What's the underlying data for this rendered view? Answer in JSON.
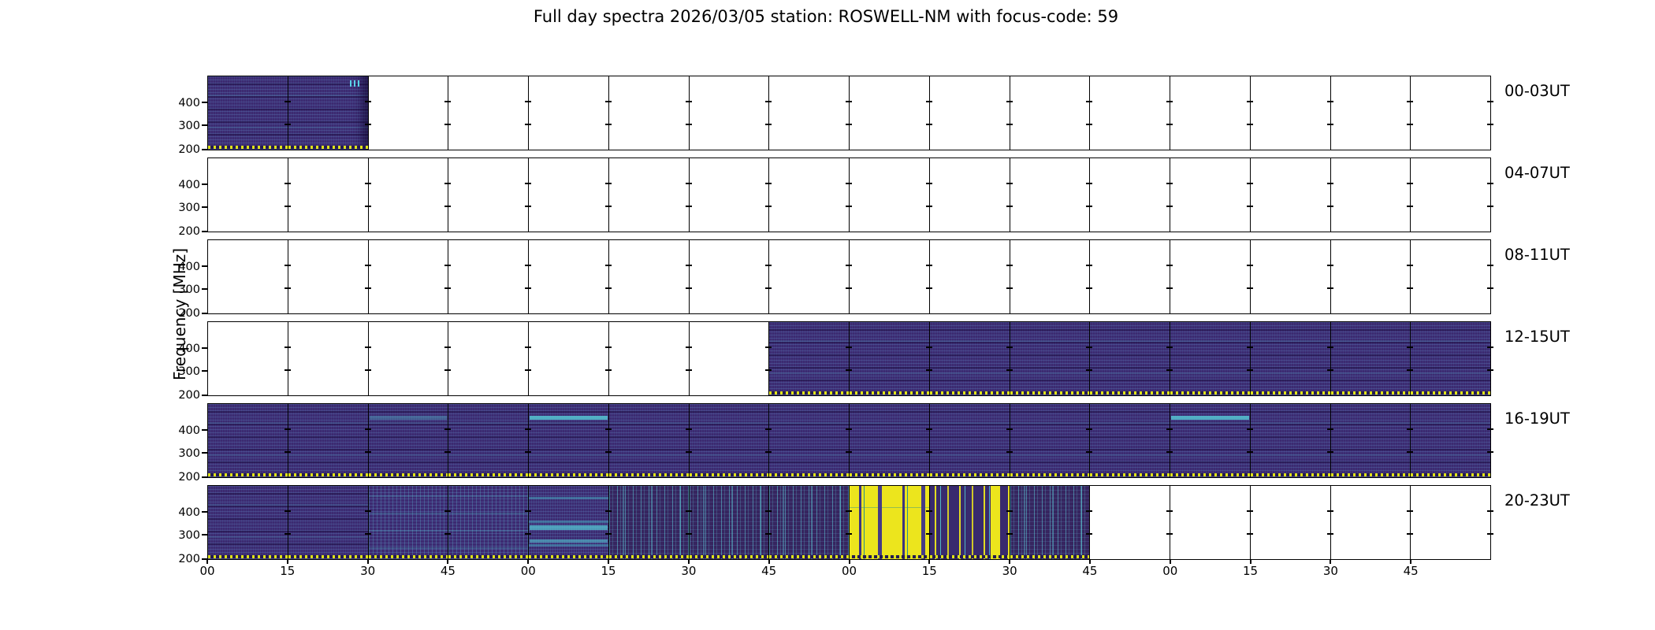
{
  "figure": {
    "title": "Full day spectra 2026/03/05 station: ROSWELL-NM with focus-code: 59",
    "ylabel": "Frequency [MHz]",
    "date": "2026/03/05",
    "station": "ROSWELL-NM",
    "focus_code": "59"
  },
  "colors": {
    "background": "#ffffff",
    "frame": "#000000",
    "spectra_base_purple": "#3c2a71",
    "streak_cyan": "#56cdd7",
    "saturated_yellow": "#ece51d",
    "dotted_line_yellow": "#dfe318",
    "colormap": "viridis"
  },
  "chart_data": {
    "type": "heatmap",
    "title": "Full day spectra 2026/03/05 station: ROSWELL-NM with focus-code: 59",
    "ylabel": "Frequency [MHz]",
    "y_tick_labels": [
      "400",
      "300",
      "200"
    ],
    "y_ticks_mhz": [
      400,
      300,
      200
    ],
    "y_range_mhz": [
      200,
      500
    ],
    "x_tick_labels": [
      "00",
      "15",
      "30",
      "45",
      "00",
      "15",
      "30",
      "45",
      "00",
      "15",
      "30",
      "45",
      "00",
      "15",
      "30",
      "45"
    ],
    "x_units": "minutes; each row spans 4 hours split into 15-minute panels",
    "panel_grid": {
      "columns": 16,
      "minutes_per_cell": 15,
      "rows": 6
    },
    "legend_position": "none",
    "grid": "panel borders only",
    "rows": [
      {
        "label": "00-03UT",
        "coverage": "data 00:00-00:30, remainder empty; small cyan burst marks at top of 00:15-00:30 panel",
        "cells": [
          "data",
          "data-iii",
          "empty",
          "empty",
          "empty",
          "empty",
          "empty",
          "empty",
          "empty",
          "empty",
          "empty",
          "empty",
          "empty",
          "empty",
          "empty",
          "empty"
        ]
      },
      {
        "label": "04-07UT",
        "coverage": "no data",
        "cells": [
          "empty",
          "empty",
          "empty",
          "empty",
          "empty",
          "empty",
          "empty",
          "empty",
          "empty",
          "empty",
          "empty",
          "empty",
          "empty",
          "empty",
          "empty",
          "empty"
        ]
      },
      {
        "label": "08-11UT",
        "coverage": "no data",
        "cells": [
          "empty",
          "empty",
          "empty",
          "empty",
          "empty",
          "empty",
          "empty",
          "empty",
          "empty",
          "empty",
          "empty",
          "empty",
          "empty",
          "empty",
          "empty",
          "empty"
        ]
      },
      {
        "label": "12-15UT",
        "coverage": "empty until 13:45, data 13:45-16:00",
        "cells": [
          "empty",
          "empty",
          "empty",
          "empty",
          "empty",
          "empty",
          "empty",
          "data",
          "data",
          "data",
          "data",
          "data",
          "data",
          "data",
          "data",
          "data"
        ]
      },
      {
        "label": "16-19UT",
        "coverage": "data 16:00-20:00; bright cyan band near 450 MHz around 17:00-17:15 and 19:00-19:15",
        "cells": [
          "data",
          "data",
          "data-faintband",
          "data",
          "data-cyanband",
          "data",
          "data",
          "data",
          "data",
          "data",
          "data",
          "data",
          "data-cyanband",
          "data",
          "data",
          "data"
        ]
      },
      {
        "label": "20-23UT",
        "coverage": "data 20:00-22:45, empty after; strong saturated yellow bursts 22:00-22:30, dense cyan streaking 21:15-22:45",
        "cells": [
          "data",
          "data",
          "data-streaks",
          "data-streaks",
          "data-bands",
          "data-vstreaks",
          "data-vstreaks",
          "data-vstreaks",
          "data-burst",
          "data-stripes",
          "data-vstreaks",
          "empty",
          "empty",
          "empty",
          "empty",
          "empty"
        ]
      }
    ]
  }
}
